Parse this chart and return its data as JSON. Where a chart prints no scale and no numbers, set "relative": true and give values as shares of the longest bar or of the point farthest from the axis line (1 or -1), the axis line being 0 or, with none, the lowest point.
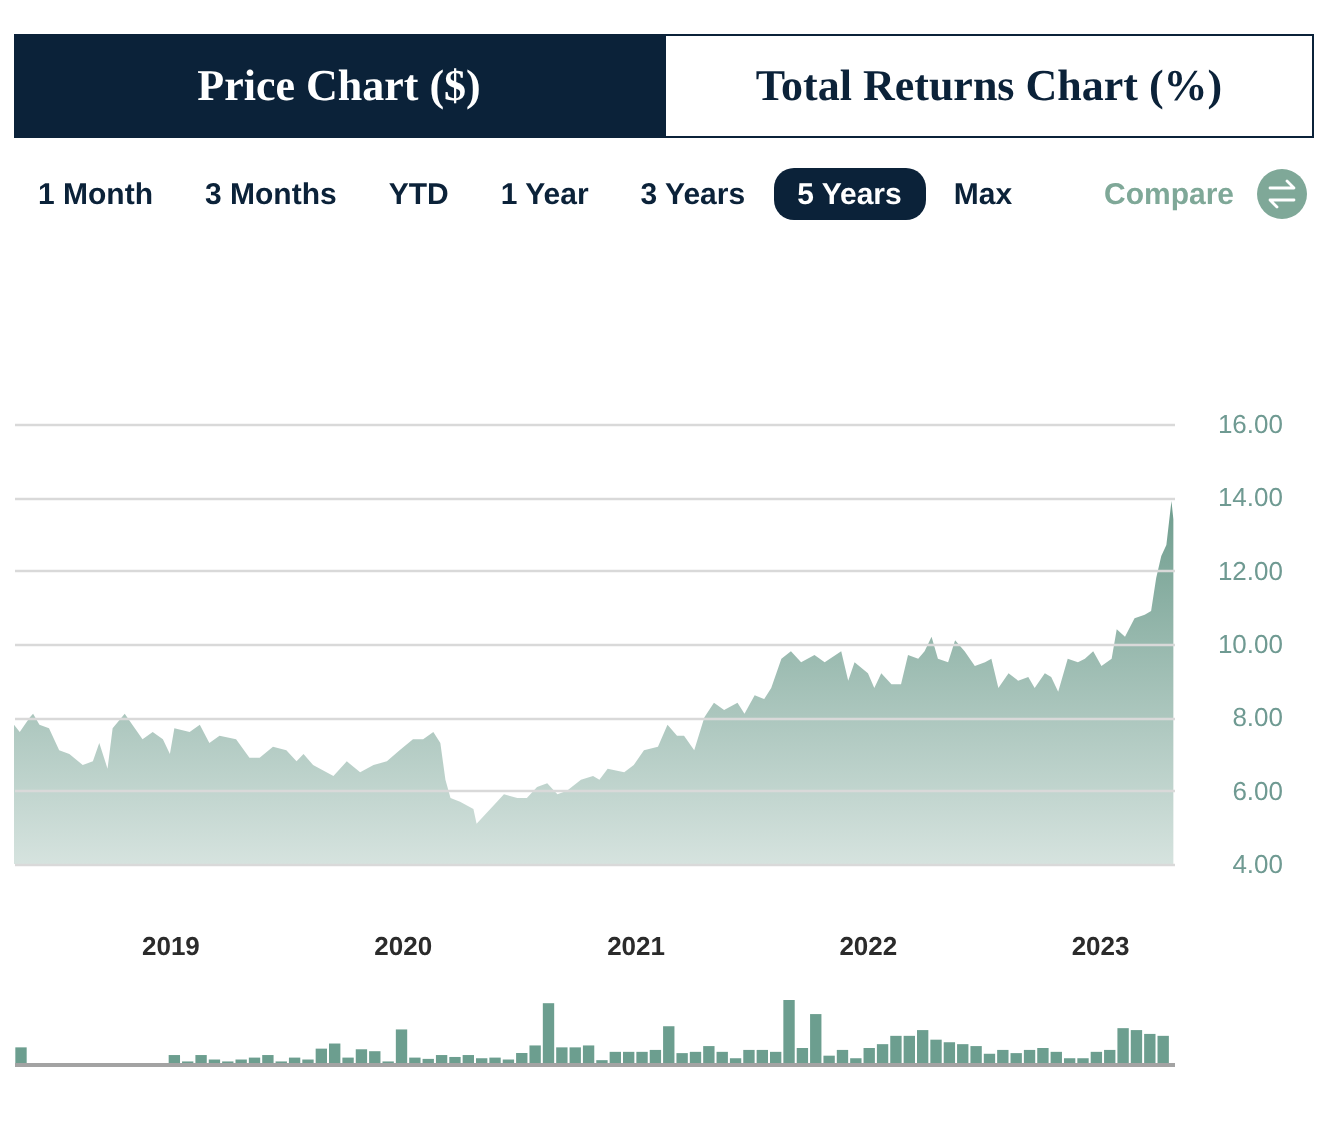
{
  "chart_data": [
    {
      "type": "other",
      "annotations": [
        "Price Chart ($)",
        "Total Returns Chart (%)",
        "1 Month",
        "3 Months",
        "YTD",
        "1 Year",
        "3 Years",
        "5 Years",
        "Max",
        "Compare"
      ]
    },
    {
      "type": "area",
      "color": "#6f9d8e",
      "x": [
        "2018-05-01",
        "2018-05-10",
        "2018-05-26",
        "2018-05-31",
        "2018-06-10",
        "2018-06-25",
        "2018-07-11",
        "2018-07-27",
        "2018-08-17",
        "2018-09-02",
        "2018-09-12",
        "2018-09-25",
        "2018-10-03",
        "2018-10-22",
        "2018-11-03",
        "2018-11-19",
        "2018-12-05",
        "2018-12-21",
        "2019-01-01",
        "2019-01-08",
        "2019-02-01",
        "2019-02-17",
        "2019-03-04",
        "2019-03-20",
        "2019-04-15",
        "2019-05-06",
        "2019-05-22",
        "2019-06-12",
        "2019-07-03",
        "2019-07-19",
        "2019-07-30",
        "2019-08-14",
        "2019-09-15",
        "2019-10-06",
        "2019-10-27",
        "2019-11-17",
        "2019-12-08",
        "2019-12-28",
        "2020-01-18",
        "2020-02-03",
        "2020-02-19",
        "2020-03-01",
        "2020-03-09",
        "2020-03-17",
        "2020-04-01",
        "2020-04-22",
        "2020-04-27",
        "2020-05-13",
        "2020-05-24",
        "2020-06-09",
        "2020-06-30",
        "2020-07-15",
        "2020-07-31",
        "2020-08-16",
        "2020-09-01",
        "2020-09-16",
        "2020-10-08",
        "2020-10-27",
        "2020-11-06",
        "2020-11-19",
        "2020-12-15",
        "2020-12-30",
        "2021-01-15",
        "2021-02-06",
        "2021-02-21",
        "2021-03-08",
        "2021-03-19",
        "2021-04-04",
        "2021-04-20",
        "2021-05-05",
        "2021-05-21",
        "2021-06-11",
        "2021-06-22",
        "2021-07-08",
        "2021-07-23",
        "2021-08-03",
        "2021-08-19",
        "2021-09-03",
        "2021-09-19",
        "2021-10-10",
        "2021-10-26",
        "2021-11-21",
        "2021-12-02",
        "2021-12-12",
        "2022-01-02",
        "2022-01-12",
        "2022-01-23",
        "2022-02-08",
        "2022-02-23",
        "2022-03-06",
        "2022-03-22",
        "2022-04-01",
        "2022-04-12",
        "2022-04-22",
        "2022-05-08",
        "2022-05-19",
        "2022-06-03",
        "2022-06-19",
        "2022-07-05",
        "2022-07-15",
        "2022-07-26",
        "2022-08-11",
        "2022-08-26",
        "2022-09-11",
        "2022-09-21",
        "2022-10-07",
        "2022-10-17",
        "2022-10-28",
        "2022-11-12",
        "2022-11-28",
        "2022-12-09",
        "2022-12-22",
        "2023-01-04",
        "2023-01-20",
        "2023-01-28",
        "2023-02-10",
        "2023-02-25",
        "2023-03-13",
        "2023-03-23",
        "2023-03-31",
        "2023-04-08",
        "2023-04-16",
        "2023-04-20",
        "2023-04-24",
        "2023-04-27"
      ],
      "values": [
        7.8,
        7.6,
        8.0,
        8.1,
        7.8,
        7.7,
        7.1,
        7.0,
        6.7,
        6.8,
        7.3,
        6.6,
        7.7,
        8.1,
        7.8,
        7.4,
        7.6,
        7.4,
        7.0,
        7.7,
        7.6,
        7.8,
        7.3,
        7.5,
        7.4,
        6.9,
        6.9,
        7.2,
        7.1,
        6.8,
        7.0,
        6.7,
        6.4,
        6.8,
        6.5,
        6.7,
        6.8,
        7.1,
        7.4,
        7.4,
        7.6,
        7.3,
        6.3,
        5.8,
        5.7,
        5.5,
        5.1,
        5.4,
        5.6,
        5.9,
        5.8,
        5.8,
        6.1,
        6.2,
        5.9,
        6.0,
        6.3,
        6.4,
        6.3,
        6.6,
        6.5,
        6.7,
        7.1,
        7.2,
        7.8,
        7.5,
        7.5,
        7.1,
        8.0,
        8.4,
        8.2,
        8.4,
        8.1,
        8.6,
        8.5,
        8.8,
        9.6,
        9.8,
        9.5,
        9.7,
        9.5,
        9.8,
        9.0,
        9.5,
        9.2,
        8.8,
        9.2,
        8.9,
        8.9,
        9.7,
        9.6,
        9.8,
        10.2,
        9.6,
        9.5,
        10.1,
        9.8,
        9.4,
        9.5,
        9.6,
        8.8,
        9.2,
        9.0,
        9.1,
        8.8,
        9.2,
        9.1,
        8.7,
        9.6,
        9.5,
        9.6,
        9.8,
        9.4,
        9.6,
        10.4,
        10.2,
        10.7,
        10.8,
        10.9,
        11.8,
        12.4,
        12.7,
        13.3,
        13.9,
        13.4
      ],
      "xlim": [
        "2018-05-01",
        "2023-04-28"
      ],
      "xticks": [
        "2019",
        "2020",
        "2021",
        "2022",
        "2023"
      ],
      "ylim": [
        4,
        16
      ],
      "yticks": [
        {
          "value": 4,
          "label": "4.00"
        },
        {
          "value": 6,
          "label": "6.00"
        },
        {
          "value": 8,
          "label": "8.00"
        },
        {
          "value": 10,
          "label": "10.00"
        },
        {
          "value": 12,
          "label": "12.00"
        },
        {
          "value": 14,
          "label": "14.00"
        },
        {
          "value": 16,
          "label": "16.00"
        }
      ],
      "grid": "y"
    },
    {
      "type": "bar",
      "relative": true,
      "color": "#6c9e8f",
      "tick_labels": false,
      "x": [
        "2018-05-12",
        "2019-01-08",
        "2019-01-29",
        "2019-02-19",
        "2019-03-12",
        "2019-04-02",
        "2019-04-23",
        "2019-05-14",
        "2019-06-04",
        "2019-06-25",
        "2019-07-16",
        "2019-08-06",
        "2019-08-27",
        "2019-09-17",
        "2019-10-08",
        "2019-10-29",
        "2019-11-19",
        "2019-12-10",
        "2019-12-31",
        "2020-01-21",
        "2020-02-11",
        "2020-03-03",
        "2020-03-24",
        "2020-04-14",
        "2020-05-05",
        "2020-05-26",
        "2020-06-16",
        "2020-07-07",
        "2020-07-28",
        "2020-08-18",
        "2020-09-08",
        "2020-09-29",
        "2020-10-20",
        "2020-11-10",
        "2020-12-01",
        "2020-12-22",
        "2021-01-12",
        "2021-02-02",
        "2021-02-23",
        "2021-03-16",
        "2021-04-06",
        "2021-04-27",
        "2021-05-18",
        "2021-06-08",
        "2021-06-29",
        "2021-07-20",
        "2021-08-10",
        "2021-08-31",
        "2021-09-21",
        "2021-10-12",
        "2021-11-02",
        "2021-11-23",
        "2021-12-14",
        "2022-01-04",
        "2022-01-25",
        "2022-02-15",
        "2022-03-08",
        "2022-03-29",
        "2022-04-19",
        "2022-05-10",
        "2022-05-31",
        "2022-06-21",
        "2022-07-12",
        "2022-08-02",
        "2022-08-23",
        "2022-09-13",
        "2022-10-04",
        "2022-10-25",
        "2022-11-15",
        "2022-12-06",
        "2022-12-27",
        "2023-01-17",
        "2023-02-07",
        "2023-02-28",
        "2023-03-21",
        "2023-04-11"
      ],
      "values": [
        0.26,
        0.14,
        0.04,
        0.14,
        0.07,
        0.04,
        0.07,
        0.1,
        0.14,
        0.04,
        0.1,
        0.07,
        0.24,
        0.32,
        0.1,
        0.23,
        0.2,
        0.04,
        0.54,
        0.1,
        0.08,
        0.14,
        0.11,
        0.14,
        0.09,
        0.1,
        0.07,
        0.17,
        0.29,
        0.95,
        0.26,
        0.26,
        0.29,
        0.06,
        0.19,
        0.19,
        0.19,
        0.22,
        0.59,
        0.17,
        0.19,
        0.28,
        0.19,
        0.09,
        0.22,
        0.22,
        0.19,
        1,
        0.25,
        0.78,
        0.13,
        0.22,
        0.09,
        0.25,
        0.31,
        0.44,
        0.44,
        0.53,
        0.38,
        0.34,
        0.31,
        0.28,
        0.16,
        0.22,
        0.17,
        0.22,
        0.25,
        0.19,
        0.09,
        0.09,
        0.19,
        0.22,
        0.56,
        0.53,
        0.47,
        0.44
      ],
      "xlim": [
        "2018-05-01",
        "2023-04-28"
      ]
    }
  ]
}
